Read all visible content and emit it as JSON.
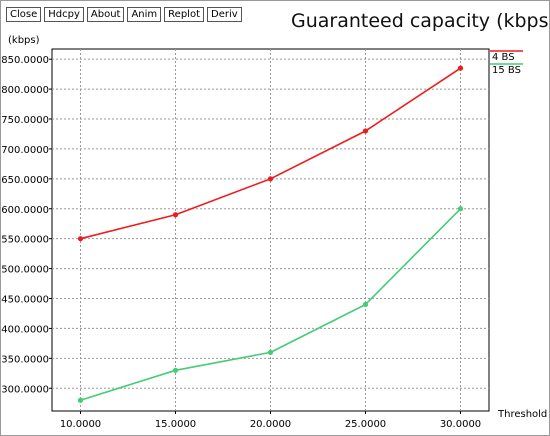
{
  "toolbar": {
    "buttons": [
      "Close",
      "Hdcpy",
      "About",
      "Anim",
      "Replot",
      "Deriv"
    ]
  },
  "chart_data": {
    "type": "line",
    "title": "Guaranteed capacity (kbps)",
    "xlabel": "Threshold",
    "ylabel": "(kbps)",
    "x": [
      10,
      15,
      20,
      25,
      30
    ],
    "x_tick_labels": [
      "10.0000",
      "15.0000",
      "20.0000",
      "25.0000",
      "30.0000"
    ],
    "y_tick_values": [
      300,
      350,
      400,
      450,
      500,
      550,
      600,
      650,
      700,
      750,
      800,
      850
    ],
    "y_tick_labels": [
      "300.0000",
      "350.0000",
      "400.0000",
      "450.0000",
      "500.0000",
      "550.0000",
      "600.0000",
      "650.0000",
      "700.0000",
      "750.0000",
      "800.0000",
      "850.0000"
    ],
    "xlim": [
      8.5,
      31.5
    ],
    "ylim": [
      262,
      867
    ],
    "grid": true,
    "legend_position": "right",
    "series": [
      {
        "name": "4 BS",
        "color": "#ee1c1c",
        "values": [
          550,
          590,
          650,
          730,
          835
        ]
      },
      {
        "name": "15 BS",
        "color": "#44cc77",
        "values": [
          280,
          330,
          360,
          440,
          600
        ]
      }
    ]
  }
}
